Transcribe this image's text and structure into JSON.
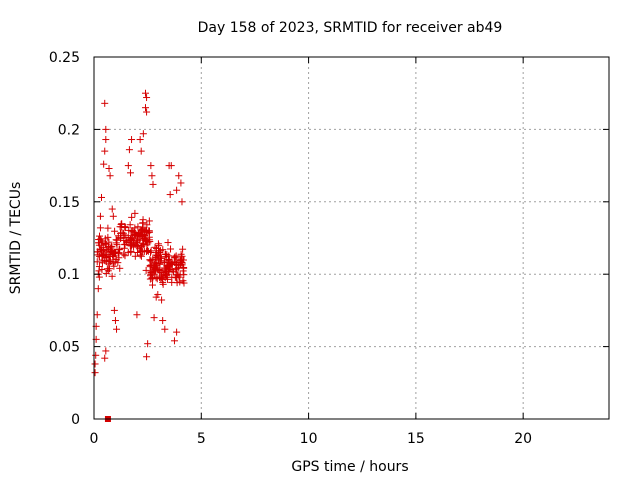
{
  "chart_data": {
    "type": "scatter",
    "title": "Day 158 of 2023, SRMTID for receiver ab49",
    "xlabel": "GPS time / hours",
    "ylabel": "SRMTID / TECUs",
    "xlim": [
      0,
      24
    ],
    "ylim": [
      0,
      0.25
    ],
    "xticks": [
      0,
      5,
      10,
      15,
      20
    ],
    "xtick_labels": [
      "0",
      "5",
      "10",
      "15",
      "20"
    ],
    "yticks": [
      0,
      0.05,
      0.1,
      0.15,
      0.2,
      0.25
    ],
    "ytick_labels": [
      "0",
      "0.05",
      "0.1",
      "0.15",
      "0.2",
      "0.25"
    ],
    "grid": true,
    "legend": "none",
    "color": "#d40000",
    "marker": "plus",
    "x_extent": [
      0.0,
      4.2
    ],
    "point_count": 420,
    "points": [
      [
        0.5,
        0.218
      ],
      [
        0.35,
        0.153
      ],
      [
        0.55,
        0.2
      ],
      [
        0.55,
        0.193
      ],
      [
        0.5,
        0.185
      ],
      [
        0.45,
        0.176
      ],
      [
        0.3,
        0.14
      ],
      [
        0.3,
        0.132
      ],
      [
        0.25,
        0.12
      ],
      [
        0.2,
        0.1
      ],
      [
        0.25,
        0.098
      ],
      [
        0.2,
        0.09
      ],
      [
        0.15,
        0.072
      ],
      [
        0.1,
        0.064
      ],
      [
        0.1,
        0.055
      ],
      [
        0.08,
        0.044
      ],
      [
        0.05,
        0.038
      ],
      [
        0.05,
        0.032
      ],
      [
        0.55,
        0.047
      ],
      [
        0.5,
        0.042
      ],
      [
        0.7,
        0.173
      ],
      [
        0.75,
        0.168
      ],
      [
        0.85,
        0.145
      ],
      [
        0.9,
        0.14
      ],
      [
        1.75,
        0.193
      ],
      [
        1.65,
        0.186
      ],
      [
        1.6,
        0.175
      ],
      [
        1.7,
        0.17
      ],
      [
        2.15,
        0.193
      ],
      [
        2.3,
        0.197
      ],
      [
        2.2,
        0.185
      ],
      [
        2.4,
        0.225
      ],
      [
        2.45,
        0.222
      ],
      [
        2.4,
        0.215
      ],
      [
        2.45,
        0.212
      ],
      [
        2.65,
        0.175
      ],
      [
        2.7,
        0.168
      ],
      [
        2.75,
        0.162
      ],
      [
        3.5,
        0.175
      ],
      [
        3.6,
        0.175
      ],
      [
        3.95,
        0.168
      ],
      [
        4.05,
        0.163
      ],
      [
        3.55,
        0.155
      ],
      [
        3.85,
        0.158
      ],
      [
        4.1,
        0.15
      ],
      [
        2.45,
        0.043
      ],
      [
        2.5,
        0.052
      ],
      [
        3.75,
        0.054
      ],
      [
        3.85,
        0.06
      ],
      [
        2.0,
        0.072
      ],
      [
        2.8,
        0.07
      ],
      [
        3.2,
        0.068
      ],
      [
        3.3,
        0.062
      ],
      [
        1.05,
        0.062
      ],
      [
        1.0,
        0.068
      ],
      [
        0.95,
        0.075
      ]
    ]
  }
}
